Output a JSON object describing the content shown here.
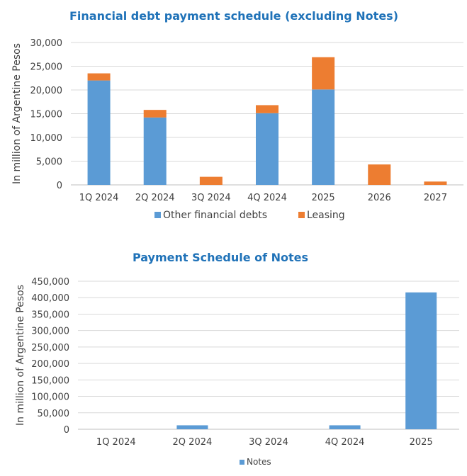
{
  "chart_data": [
    {
      "type": "bar",
      "stacked": true,
      "title": "Financial debt payment schedule (excluding Notes)",
      "ylabel": "In million of Argentine Pesos",
      "categories": [
        "1Q 2024",
        "2Q 2024",
        "3Q 2024",
        "4Q 2024",
        "2025",
        "2026",
        "2027"
      ],
      "ylim": [
        0,
        30000
      ],
      "yticks": [
        "0",
        "5,000",
        "10,000",
        "15,000",
        "20,000",
        "25,000",
        "30,000"
      ],
      "grid": true,
      "legend_position": "bottom",
      "series": [
        {
          "name": "Other financial debts",
          "color": "#5b9bd5",
          "values": [
            22000,
            14200,
            0,
            15100,
            20100,
            0,
            0
          ]
        },
        {
          "name": "Leasing",
          "color": "#ed7d31",
          "values": [
            1500,
            1600,
            1700,
            1700,
            6800,
            4300,
            700
          ]
        }
      ]
    },
    {
      "type": "bar",
      "title": "Payment Schedule of Notes",
      "ylabel": "In million of Argentine Pesos",
      "categories": [
        "1Q 2024",
        "2Q 2024",
        "3Q 2024",
        "4Q 2024",
        "2025"
      ],
      "ylim": [
        0,
        450000
      ],
      "yticks": [
        "0",
        "50,000",
        "100,000",
        "150,000",
        "200,000",
        "250,000",
        "300,000",
        "350,000",
        "400,000",
        "450,000"
      ],
      "grid": true,
      "legend_position": "bottom",
      "series": [
        {
          "name": "Notes",
          "color": "#5b9bd5",
          "values": [
            0,
            12000,
            0,
            12000,
            416000
          ]
        }
      ]
    }
  ]
}
